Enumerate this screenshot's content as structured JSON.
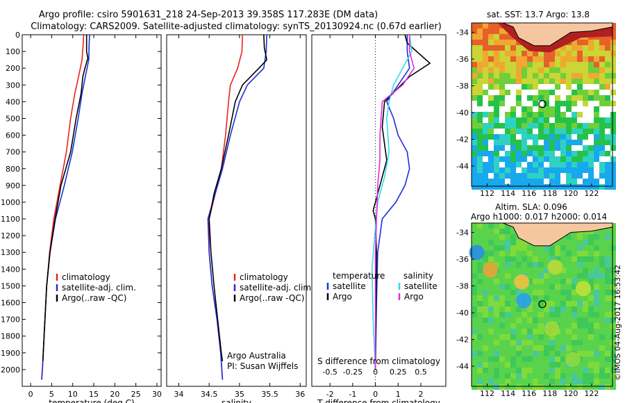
{
  "title_line1": "Argo profile: csiro 5901631_218 24-Sep-2013 39.358S 117.283E (DM data)",
  "title_line2": "Climatology: CARS2009. Satellite-adjusted climatology: synTS_20130924.nc (0.67d earlier)",
  "colors": {
    "climatology": "#e8231e",
    "satellite": "#1a2fd6",
    "argo": "#000000",
    "salinity_sat": "#35d8e6",
    "salinity_argo": "#e22be0"
  },
  "chart_data": [
    {
      "type": "line",
      "name": "temperature",
      "xlabel": "temperature (deg C)",
      "ylabel": "",
      "xlim": [
        -2,
        31
      ],
      "ylim": [
        2100,
        0
      ],
      "y_reversed": true,
      "xticks": [
        0,
        5,
        10,
        15,
        20,
        25,
        30
      ],
      "yticks": [
        0,
        100,
        200,
        300,
        400,
        500,
        600,
        700,
        800,
        900,
        1000,
        1100,
        1200,
        1300,
        1400,
        1500,
        1600,
        1700,
        1800,
        1900,
        2000
      ],
      "legend": [
        "climatology",
        "satellite-adj. clim.",
        "Argo(..raw -QC)"
      ],
      "legend_position": "center-right",
      "series": [
        {
          "name": "climatology",
          "color": "#e8231e",
          "points": [
            [
              12.6,
              0
            ],
            [
              12.5,
              50
            ],
            [
              12.2,
              150
            ],
            [
              11.4,
              250
            ],
            [
              10.5,
              350
            ],
            [
              9.5,
              500
            ],
            [
              8.5,
              700
            ],
            [
              7.0,
              900
            ],
            [
              5.5,
              1100
            ],
            [
              4.5,
              1300
            ],
            [
              3.8,
              1500
            ],
            [
              3.2,
              1800
            ],
            [
              2.8,
              2000
            ],
            [
              2.6,
              2060
            ]
          ]
        },
        {
          "name": "satellite-adj. clim.",
          "color": "#1a2fd6",
          "points": [
            [
              14.0,
              0
            ],
            [
              13.9,
              50
            ],
            [
              13.8,
              150
            ],
            [
              13.0,
              250
            ],
            [
              12.2,
              350
            ],
            [
              11.3,
              500
            ],
            [
              9.9,
              700
            ],
            [
              8.0,
              900
            ],
            [
              5.9,
              1100
            ],
            [
              4.6,
              1300
            ],
            [
              3.8,
              1500
            ],
            [
              3.2,
              1800
            ],
            [
              2.8,
              2000
            ],
            [
              2.6,
              2060
            ]
          ]
        },
        {
          "name": "Argo(..raw -QC)",
          "color": "#000000",
          "points": [
            [
              13.3,
              0
            ],
            [
              13.3,
              100
            ],
            [
              13.6,
              140
            ],
            [
              12.9,
              200
            ],
            [
              12.4,
              250
            ],
            [
              12.0,
              350
            ],
            [
              10.8,
              500
            ],
            [
              9.5,
              700
            ],
            [
              7.2,
              900
            ],
            [
              5.8,
              1100
            ],
            [
              4.6,
              1300
            ],
            [
              3.8,
              1500
            ],
            [
              3.2,
              1800
            ],
            [
              2.9,
              1950
            ]
          ]
        }
      ]
    },
    {
      "type": "line",
      "name": "salinity",
      "xlabel": "salinity",
      "ylabel": "",
      "xlim": [
        33.8,
        36.1
      ],
      "ylim": [
        2100,
        0
      ],
      "y_reversed": true,
      "xticks": [
        34,
        34.5,
        35,
        35.5,
        36
      ],
      "legend": [
        "climatology",
        "satellite-adj. clim.",
        "Argo(..raw -QC)"
      ],
      "legend_position": "center-right",
      "annotations": [
        "Argo Australia",
        "PI: Susan Wijffels"
      ],
      "series": [
        {
          "name": "climatology",
          "color": "#e8231e",
          "points": [
            [
              35.05,
              0
            ],
            [
              35.04,
              100
            ],
            [
              34.97,
              200
            ],
            [
              34.85,
              300
            ],
            [
              34.82,
              400
            ],
            [
              34.77,
              600
            ],
            [
              34.7,
              800
            ],
            [
              34.6,
              950
            ],
            [
              34.5,
              1100
            ],
            [
              34.5,
              1300
            ],
            [
              34.55,
              1500
            ],
            [
              34.63,
              1700
            ],
            [
              34.69,
              1900
            ],
            [
              34.72,
              2060
            ]
          ]
        },
        {
          "name": "satellite-adj. clim.",
          "color": "#1a2fd6",
          "points": [
            [
              35.45,
              0
            ],
            [
              35.44,
              100
            ],
            [
              35.4,
              200
            ],
            [
              35.13,
              300
            ],
            [
              35.0,
              400
            ],
            [
              34.85,
              600
            ],
            [
              34.72,
              800
            ],
            [
              34.6,
              950
            ],
            [
              34.48,
              1100
            ],
            [
              34.5,
              1300
            ],
            [
              34.55,
              1500
            ],
            [
              34.63,
              1700
            ],
            [
              34.69,
              1900
            ],
            [
              34.72,
              2060
            ]
          ]
        },
        {
          "name": "Argo(..raw -QC)",
          "color": "#000000",
          "points": [
            [
              35.4,
              0
            ],
            [
              35.41,
              80
            ],
            [
              35.45,
              150
            ],
            [
              35.32,
              200
            ],
            [
              35.05,
              300
            ],
            [
              34.93,
              400
            ],
            [
              34.82,
              600
            ],
            [
              34.7,
              800
            ],
            [
              34.58,
              950
            ],
            [
              34.5,
              1100
            ],
            [
              34.53,
              1300
            ],
            [
              34.58,
              1500
            ],
            [
              34.64,
              1700
            ],
            [
              34.7,
              1900
            ],
            [
              34.72,
              1950
            ]
          ]
        }
      ]
    },
    {
      "type": "line",
      "name": "differences",
      "xlabel": "T difference from climatology",
      "x2label": "S difference from climatology",
      "xlim": [
        -2.8,
        3.1
      ],
      "ylim": [
        2100,
        0
      ],
      "y_reversed": true,
      "xticks": [
        -2,
        -1,
        0,
        1,
        2
      ],
      "x2ticks": [
        "-0.5",
        "-0.25",
        "0",
        "0.25",
        "0.5"
      ],
      "legend": [
        "temperature",
        "satellite",
        "Argo",
        "salinity",
        "satellite",
        "Argo"
      ],
      "legend_position": "center",
      "series": [
        {
          "name": "T satellite",
          "color": "#1a2fd6",
          "points": [
            [
              1.4,
              0
            ],
            [
              1.4,
              100
            ],
            [
              1.5,
              200
            ],
            [
              1.0,
              300
            ],
            [
              0.5,
              400
            ],
            [
              0.8,
              500
            ],
            [
              1.0,
              600
            ],
            [
              1.4,
              700
            ],
            [
              1.5,
              800
            ],
            [
              1.3,
              900
            ],
            [
              0.9,
              1000
            ],
            [
              0.3,
              1100
            ],
            [
              0.1,
              1300
            ],
            [
              0.05,
              1600
            ],
            [
              0.0,
              2000
            ]
          ]
        },
        {
          "name": "T Argo",
          "color": "#000000",
          "points": [
            [
              1.3,
              0
            ],
            [
              1.4,
              50
            ],
            [
              2.4,
              170
            ],
            [
              1.5,
              250
            ],
            [
              0.4,
              400
            ],
            [
              0.3,
              550
            ],
            [
              0.5,
              750
            ],
            [
              0.2,
              900
            ],
            [
              0.0,
              1000
            ],
            [
              -0.1,
              1050
            ],
            [
              0.0,
              1100
            ],
            [
              0.05,
              1300
            ],
            [
              0.0,
              2000
            ]
          ]
        },
        {
          "name": "S satellite",
          "color": "#35d8e6",
          "points": [
            [
              1.5,
              0
            ],
            [
              1.6,
              100
            ],
            [
              1.4,
              150
            ],
            [
              0.8,
              300
            ],
            [
              0.6,
              400
            ],
            [
              0.5,
              500
            ],
            [
              0.6,
              700
            ],
            [
              0.4,
              850
            ],
            [
              0.1,
              1000
            ],
            [
              0.0,
              1150
            ],
            [
              -0.15,
              1400
            ],
            [
              -0.1,
              1700
            ],
            [
              0.0,
              2000
            ]
          ]
        },
        {
          "name": "S Argo",
          "color": "#e22be0",
          "points": [
            [
              1.5,
              0
            ],
            [
              1.5,
              100
            ],
            [
              1.7,
              200
            ],
            [
              1.2,
              300
            ],
            [
              0.3,
              400
            ],
            [
              0.2,
              600
            ],
            [
              0.2,
              750
            ],
            [
              0.1,
              900
            ],
            [
              0.05,
              1100
            ],
            [
              0.0,
              1300
            ],
            [
              0.0,
              2000
            ]
          ]
        }
      ]
    }
  ],
  "maps": [
    {
      "name": "sst",
      "title": "sat. SST: 13.7  Argo: 13.8",
      "xticks": [
        "112",
        "114",
        "116",
        "118",
        "120",
        "122"
      ],
      "yticks": [
        "-34",
        "-36",
        "-38",
        "-40",
        "-42",
        "-44"
      ],
      "xlim": [
        110.5,
        124
      ],
      "ylim": [
        -45.5,
        -33.3
      ],
      "marker": [
        117.28,
        -39.36
      ]
    },
    {
      "name": "sla",
      "title1": "Altim. SLA: 0.096",
      "title2": "Argo h1000: 0.017 h2000: 0.014",
      "xticks": [
        "112",
        "114",
        "116",
        "118",
        "120",
        "122"
      ],
      "yticks": [
        "-34",
        "-36",
        "-38",
        "-40",
        "-42",
        "-44"
      ],
      "xlim": [
        110.5,
        124
      ],
      "ylim": [
        -45.5,
        -33.3
      ],
      "marker": [
        117.28,
        -39.36
      ]
    }
  ],
  "credit": "©IMOS 04-Aug-2017 16:53:42"
}
